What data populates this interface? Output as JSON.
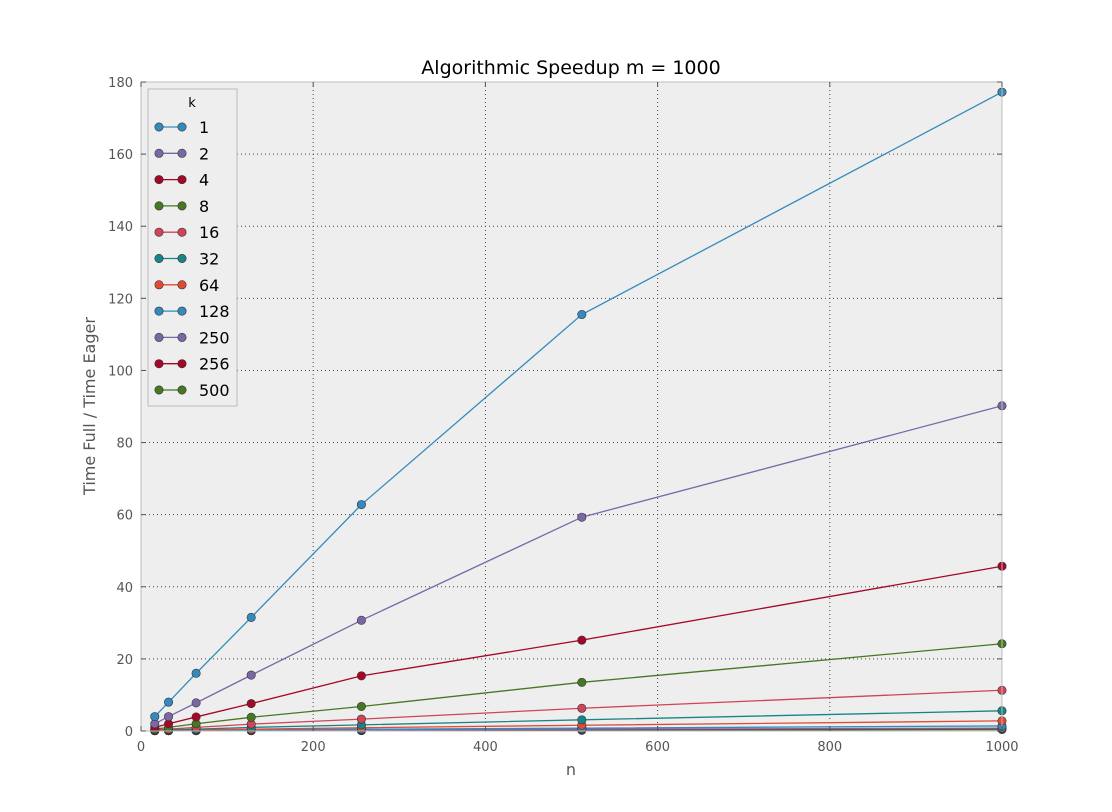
{
  "chart_data": {
    "type": "line",
    "title": "Algorithmic Speedup m = 1000",
    "xlabel": "n",
    "ylabel": "Time Full / Time Eager",
    "xlim": [
      0,
      1000
    ],
    "ylim": [
      0,
      180
    ],
    "xticks": [
      0,
      200,
      400,
      600,
      800,
      1000
    ],
    "yticks": [
      0,
      20,
      40,
      60,
      80,
      100,
      120,
      140,
      160,
      180
    ],
    "grid": true,
    "legend_placement": "top-left",
    "legend_title": "k",
    "x": [
      16,
      32,
      64,
      128,
      256,
      512,
      1000
    ],
    "series": [
      {
        "name": "1",
        "color": "#348ABD",
        "values": [
          4.0,
          8.0,
          16.0,
          31.5,
          62.8,
          115.5,
          177.2
        ]
      },
      {
        "name": "2",
        "color": "#7A68A6",
        "values": [
          2.0,
          4.0,
          7.8,
          15.5,
          30.7,
          59.3,
          90.2
        ]
      },
      {
        "name": "4",
        "color": "#A60628",
        "values": [
          1.0,
          2.0,
          3.9,
          7.6,
          15.3,
          25.2,
          45.7
        ]
      },
      {
        "name": "8",
        "color": "#467821",
        "values": [
          0.5,
          1.0,
          2.0,
          3.8,
          6.8,
          13.5,
          24.2
        ]
      },
      {
        "name": "16",
        "color": "#CF4457",
        "values": [
          0.3,
          0.5,
          1.0,
          1.9,
          3.3,
          6.3,
          11.3
        ]
      },
      {
        "name": "32",
        "color": "#188487",
        "values": [
          0.2,
          0.3,
          0.5,
          1.0,
          1.7,
          3.1,
          5.6
        ]
      },
      {
        "name": "64",
        "color": "#E24A33",
        "values": [
          0.1,
          0.2,
          0.3,
          0.5,
          0.9,
          1.6,
          2.8
        ]
      },
      {
        "name": "128",
        "color": "#348ABD",
        "values": [
          0.1,
          0.1,
          0.1,
          0.3,
          0.5,
          0.8,
          1.4
        ]
      },
      {
        "name": "250",
        "color": "#7A68A6",
        "values": [
          0.1,
          0.1,
          0.1,
          0.1,
          0.3,
          0.5,
          0.8
        ]
      },
      {
        "name": "256",
        "color": "#A60628",
        "values": [
          0.1,
          0.1,
          0.1,
          0.1,
          0.3,
          0.4,
          0.7
        ]
      },
      {
        "name": "500",
        "color": "#467821",
        "values": [
          0.1,
          0.1,
          0.1,
          0.1,
          0.1,
          0.2,
          0.4
        ]
      }
    ]
  }
}
